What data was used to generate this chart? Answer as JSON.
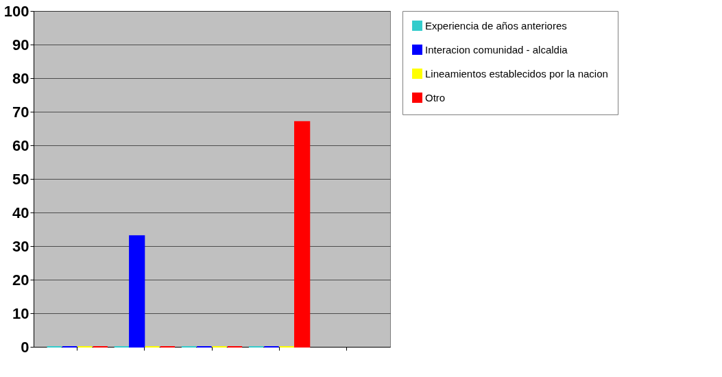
{
  "chart_data": {
    "type": "bar",
    "categories": [
      null,
      null,
      null,
      null,
      null
    ],
    "series": [
      {
        "name": "Experiencia de años anteriores",
        "color": "#33cccc",
        "values": [
          0,
          0,
          0,
          0,
          null
        ]
      },
      {
        "name": "Interacion comunidad - alcaldia",
        "color": "#0000ff",
        "values": [
          0,
          33,
          0,
          0,
          null
        ]
      },
      {
        "name": "Lineamientos establecidos por la nacion",
        "color": "#ffff00",
        "values": [
          0,
          0,
          0,
          0,
          null
        ]
      },
      {
        "name": "Otro",
        "color": "#ff0000",
        "values": [
          0,
          0,
          0,
          67,
          null
        ]
      }
    ],
    "ylim": [
      0,
      100
    ],
    "yticks": [
      0,
      10,
      20,
      30,
      40,
      50,
      60,
      70,
      80,
      90,
      100
    ],
    "grid": "y",
    "legend": "right"
  }
}
